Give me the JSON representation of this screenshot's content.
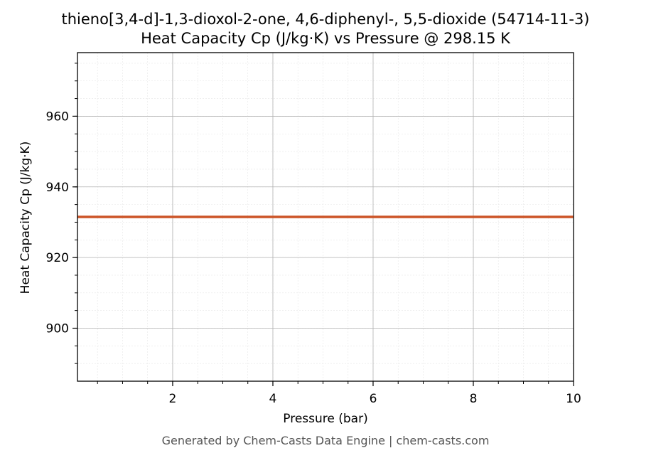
{
  "chart_data": {
    "type": "line",
    "title": "thieno[3,4-d]-1,3-dioxol-2-one, 4,6-diphenyl-, 5,5-dioxide (54714-11-3)",
    "subtitle": "Heat Capacity Cp (J/kg·K) vs Pressure @ 298.15 K",
    "xlabel": "Pressure (bar)",
    "ylabel": "Heat Capacity Cp (J/kg·K)",
    "xlim": [
      0.1,
      10
    ],
    "ylim": [
      885,
      978
    ],
    "x_ticks": [
      "2",
      "4",
      "6",
      "8",
      "10"
    ],
    "y_ticks": [
      "900",
      "920",
      "940",
      "960"
    ],
    "grid": true,
    "series": [
      {
        "color": "#cc5427",
        "x": [
          0.1,
          10
        ],
        "y": [
          931.5,
          931.5
        ]
      }
    ]
  },
  "footer": "Generated by Chem-Casts Data Engine | chem-casts.com"
}
